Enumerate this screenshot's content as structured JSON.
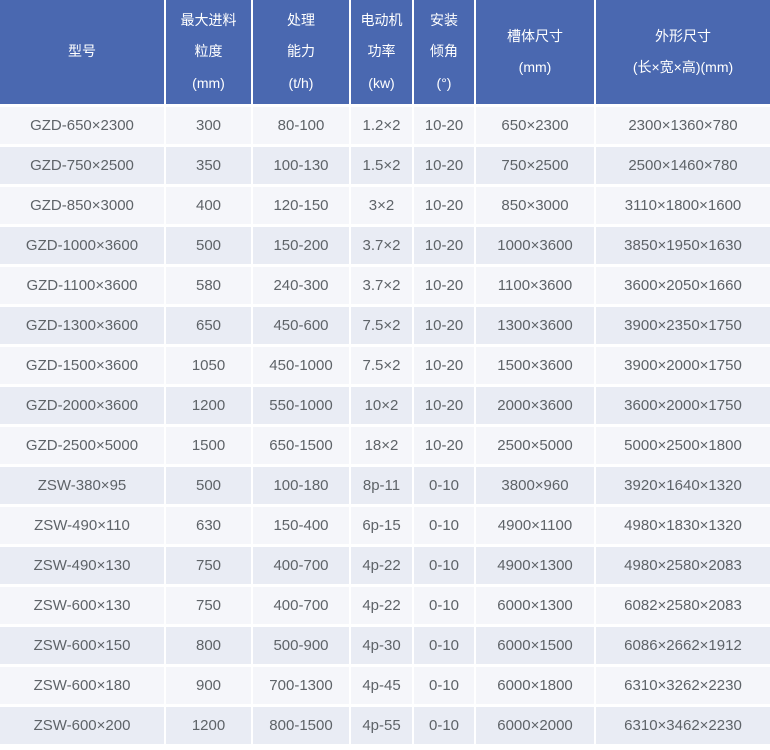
{
  "table": {
    "header_bg_color": "#4a68b0",
    "header_text_color": "#ffffff",
    "row_light_color": "#f5f6fa",
    "row_dark_color": "#e9ecf4",
    "body_text_color": "#5e6368",
    "gridline_color": "#ffffff",
    "columns": [
      {
        "l1": "型号"
      },
      {
        "l1": "最大进料",
        "l2": "粒度",
        "l3": "(mm)"
      },
      {
        "l1": "处理",
        "l2": "能力",
        "l3": "(t/h)"
      },
      {
        "l1": "电动机",
        "l2": "功率",
        "l3": "(kw)"
      },
      {
        "l1": "安装",
        "l2": "倾角",
        "l3": "(°)"
      },
      {
        "l1": "槽体尺寸",
        "l2": "(mm)"
      },
      {
        "l1": "外形尺寸",
        "l2": "(长×宽×高)(mm)"
      }
    ],
    "rows": [
      [
        "GZD-650×2300",
        "300",
        "80-100",
        "1.2×2",
        "10-20",
        "650×2300",
        "2300×1360×780"
      ],
      [
        "GZD-750×2500",
        "350",
        "100-130",
        "1.5×2",
        "10-20",
        "750×2500",
        "2500×1460×780"
      ],
      [
        "GZD-850×3000",
        "400",
        "120-150",
        "3×2",
        "10-20",
        "850×3000",
        "3110×1800×1600"
      ],
      [
        "GZD-1000×3600",
        "500",
        "150-200",
        "3.7×2",
        "10-20",
        "1000×3600",
        "3850×1950×1630"
      ],
      [
        "GZD-1100×3600",
        "580",
        "240-300",
        "3.7×2",
        "10-20",
        "1100×3600",
        "3600×2050×1660"
      ],
      [
        "GZD-1300×3600",
        "650",
        "450-600",
        "7.5×2",
        "10-20",
        "1300×3600",
        "3900×2350×1750"
      ],
      [
        "GZD-1500×3600",
        "1050",
        "450-1000",
        "7.5×2",
        "10-20",
        "1500×3600",
        "3900×2000×1750"
      ],
      [
        "GZD-2000×3600",
        "1200",
        "550-1000",
        "10×2",
        "10-20",
        "2000×3600",
        "3600×2000×1750"
      ],
      [
        "GZD-2500×5000",
        "1500",
        "650-1500",
        "18×2",
        "10-20",
        "2500×5000",
        "5000×2500×1800"
      ],
      [
        "ZSW-380×95",
        "500",
        "100-180",
        "8p-11",
        "0-10",
        "3800×960",
        "3920×1640×1320"
      ],
      [
        "ZSW-490×110",
        "630",
        "150-400",
        "6p-15",
        "0-10",
        "4900×1100",
        "4980×1830×1320"
      ],
      [
        "ZSW-490×130",
        "750",
        "400-700",
        "4p-22",
        "0-10",
        "4900×1300",
        "4980×2580×2083"
      ],
      [
        "ZSW-600×130",
        "750",
        "400-700",
        "4p-22",
        "0-10",
        "6000×1300",
        "6082×2580×2083"
      ],
      [
        "ZSW-600×150",
        "800",
        "500-900",
        "4p-30",
        "0-10",
        "6000×1500",
        "6086×2662×1912"
      ],
      [
        "ZSW-600×180",
        "900",
        "700-1300",
        "4p-45",
        "0-10",
        "6000×1800",
        "6310×3262×2230"
      ],
      [
        "ZSW-600×200",
        "1200",
        "800-1500",
        "4p-55",
        "0-10",
        "6000×2000",
        "6310×3462×2230"
      ]
    ]
  }
}
